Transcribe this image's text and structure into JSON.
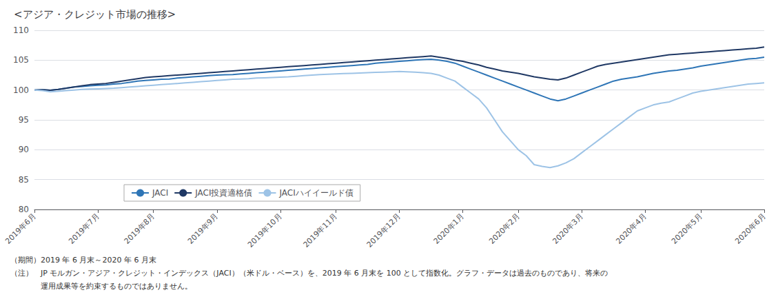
{
  "chart_data": {
    "type": "line",
    "title": "<アジア・クレジット市場の推移>",
    "annotations": [
      "（期間）2019 年 6 月末～2020 年 6 月末",
      "（注）　JP モルガン・アジア・クレジット・インデックス（JACI）（米ドル・ベース）を、2019 年 6 月末を 100 として指数化。グラフ・データは過去のものであり、将来の",
      "　　　　運用成果等を約束するものではありません。"
    ],
    "categories": [
      "2019年6月",
      null,
      null,
      null,
      null,
      null,
      null,
      null,
      "2019年7月",
      null,
      null,
      null,
      null,
      null,
      null,
      "2019年8月",
      null,
      null,
      null,
      null,
      null,
      null,
      null,
      "2019年9月",
      null,
      null,
      null,
      null,
      null,
      null,
      null,
      "2019年10月",
      null,
      null,
      null,
      null,
      null,
      null,
      "2019年11月",
      null,
      null,
      null,
      null,
      null,
      null,
      null,
      "2019年12月",
      null,
      null,
      null,
      null,
      null,
      null,
      null,
      "2020年1月",
      null,
      null,
      null,
      null,
      null,
      null,
      "2020年2月",
      null,
      null,
      null,
      null,
      null,
      null,
      null,
      "2020年3月",
      null,
      null,
      null,
      null,
      null,
      null,
      null,
      "2020年4月",
      null,
      null,
      null,
      null,
      null,
      null,
      "2020年5月",
      null,
      null,
      null,
      null,
      null,
      null,
      null,
      "2020年6月"
    ],
    "series": [
      {
        "name": "JACI",
        "color": "#2E75B6",
        "values": [
          100.0,
          100.05,
          99.95,
          100.1,
          100.3,
          100.5,
          100.6,
          100.7,
          100.8,
          100.85,
          101.0,
          101.1,
          101.3,
          101.5,
          101.6,
          101.7,
          101.8,
          101.85,
          102.0,
          102.1,
          102.2,
          102.3,
          102.4,
          102.5,
          102.55,
          102.6,
          102.7,
          102.8,
          102.9,
          103.0,
          103.1,
          103.2,
          103.3,
          103.4,
          103.5,
          103.6,
          103.7,
          103.8,
          103.9,
          104.0,
          104.1,
          104.2,
          104.3,
          104.5,
          104.6,
          104.7,
          104.8,
          104.9,
          105.0,
          105.1,
          105.15,
          105.0,
          104.8,
          104.5,
          104.0,
          103.5,
          103.0,
          102.5,
          102.0,
          101.5,
          101.0,
          100.5,
          100.0,
          99.5,
          99.0,
          98.5,
          98.2,
          98.5,
          99.0,
          99.5,
          100.0,
          100.5,
          101.0,
          101.5,
          101.8,
          102.0,
          102.2,
          102.5,
          102.8,
          103.0,
          103.2,
          103.3,
          103.5,
          103.7,
          104.0,
          104.2,
          104.4,
          104.6,
          104.8,
          105.0,
          105.2,
          105.3,
          105.5
        ]
      },
      {
        "name": "JACI投資適格債",
        "color": "#1F3864",
        "values": [
          100.0,
          100.05,
          99.95,
          100.1,
          100.3,
          100.5,
          100.7,
          100.9,
          101.0,
          101.1,
          101.3,
          101.5,
          101.7,
          101.9,
          102.1,
          102.2,
          102.3,
          102.4,
          102.5,
          102.6,
          102.7,
          102.8,
          102.9,
          103.0,
          103.1,
          103.2,
          103.3,
          103.4,
          103.5,
          103.6,
          103.7,
          103.8,
          103.9,
          104.0,
          104.1,
          104.2,
          104.3,
          104.4,
          104.5,
          104.6,
          104.7,
          104.8,
          104.9,
          105.0,
          105.1,
          105.2,
          105.3,
          105.4,
          105.5,
          105.6,
          105.7,
          105.5,
          105.3,
          105.0,
          104.8,
          104.5,
          104.2,
          103.8,
          103.5,
          103.2,
          103.0,
          102.8,
          102.5,
          102.2,
          102.0,
          101.8,
          101.7,
          102.0,
          102.5,
          103.0,
          103.5,
          104.0,
          104.3,
          104.5,
          104.7,
          104.9,
          105.1,
          105.3,
          105.5,
          105.7,
          105.9,
          106.0,
          106.1,
          106.2,
          106.3,
          106.4,
          106.5,
          106.6,
          106.7,
          106.8,
          106.9,
          107.0,
          107.2
        ]
      },
      {
        "name": "JACIハイイールド債",
        "color": "#9DC3E6",
        "values": [
          100.0,
          99.9,
          99.7,
          99.8,
          99.9,
          100.0,
          100.1,
          100.15,
          100.2,
          100.25,
          100.3,
          100.4,
          100.5,
          100.6,
          100.7,
          100.8,
          100.9,
          101.0,
          101.1,
          101.2,
          101.3,
          101.4,
          101.5,
          101.6,
          101.7,
          101.8,
          101.85,
          101.9,
          102.0,
          102.05,
          102.1,
          102.15,
          102.2,
          102.3,
          102.4,
          102.5,
          102.6,
          102.65,
          102.7,
          102.75,
          102.8,
          102.85,
          102.9,
          102.95,
          103.0,
          103.05,
          103.1,
          103.05,
          103.0,
          102.9,
          102.8,
          102.5,
          102.0,
          101.5,
          100.5,
          99.5,
          98.5,
          97.0,
          95.0,
          93.0,
          91.5,
          90.0,
          89.0,
          87.5,
          87.2,
          87.0,
          87.3,
          87.8,
          88.5,
          89.5,
          90.5,
          91.5,
          92.5,
          93.5,
          94.5,
          95.5,
          96.5,
          97.0,
          97.5,
          97.8,
          98.0,
          98.5,
          99.0,
          99.5,
          99.8,
          100.0,
          100.2,
          100.4,
          100.6,
          100.8,
          101.0,
          101.1,
          101.2
        ]
      }
    ],
    "ylim": [
      80,
      110
    ],
    "yticks": [
      80,
      85,
      90,
      95,
      100,
      105,
      110
    ],
    "grid": true,
    "legend": "lower left"
  }
}
